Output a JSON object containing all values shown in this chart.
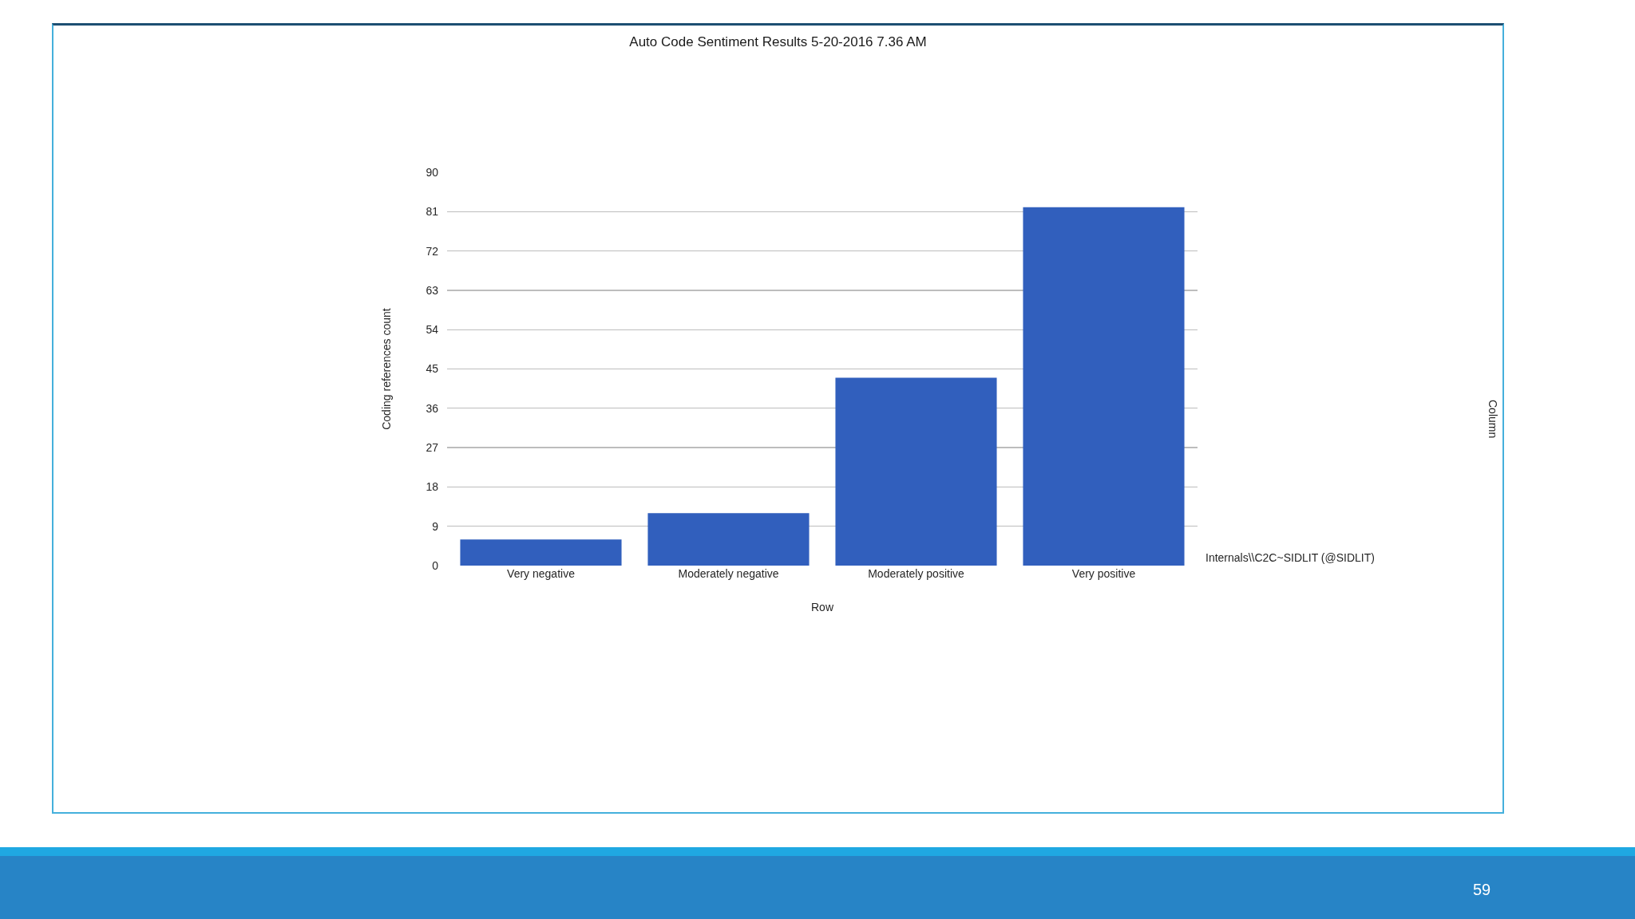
{
  "chart_data": {
    "type": "bar",
    "title": "Auto Code Sentiment Results 5-20-2016 7.36 AM",
    "xlabel": "Row",
    "ylabel": "Coding references count",
    "categories": [
      "Very negative",
      "Moderately negative",
      "Moderately positive",
      "Very positive"
    ],
    "series": [
      {
        "name": "Internals\\\\C2C~SIDLIT (@SIDLIT)",
        "color": "#315fbd",
        "values": [
          6,
          12,
          43,
          82
        ]
      }
    ],
    "ylim": [
      0,
      90
    ],
    "yticks": [
      0,
      9,
      18,
      27,
      36,
      45,
      54,
      63,
      72,
      81,
      90
    ],
    "grid": "y",
    "annotations": [
      "Column",
      "59"
    ]
  }
}
